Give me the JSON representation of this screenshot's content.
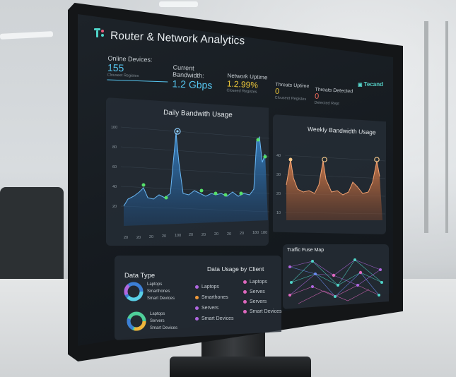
{
  "app": {
    "title": "Router & Network Analytics",
    "brand": "Tecand"
  },
  "stats": [
    {
      "label": "Online Devices:",
      "value": "155",
      "sub": "Clouseet Registes",
      "color": "#56c6f0"
    },
    {
      "label": "Current Bandwidth:",
      "value": "1.2 Gbps",
      "sub": "",
      "color": "#56c6f0"
    },
    {
      "label": "Network Uptime",
      "value": "1.2.99%",
      "sub": "Closeed Registes",
      "color": "#f0c93a"
    },
    {
      "label": "Threats Uptime",
      "value": "0",
      "sub": "Clouseet Registes",
      "color": "#f0c93a"
    },
    {
      "label": "Threats Detected",
      "value": "0",
      "sub": "Detected Rept",
      "color": "#f26b5b"
    }
  ],
  "daily": {
    "title": "Daily Bandwith Usage",
    "yticks": [
      "100",
      "80",
      "60",
      "40",
      "20"
    ],
    "xticks": [
      "20",
      "20",
      "20",
      "20",
      "100",
      "20",
      "20",
      "20",
      "20",
      "20",
      "180",
      "180"
    ],
    "colors": {
      "line": "#4aa3e8",
      "marker": "#56e06a",
      "peak": "#6fc0ff"
    }
  },
  "weekly": {
    "title": "Weekly Bandwidth Usage",
    "yticks": [
      "40",
      "30",
      "20",
      "10"
    ],
    "colors": {
      "line": "#e2895a",
      "marker": "#f7c98a"
    }
  },
  "data_type": {
    "title": "Data Type",
    "legend1": [
      "Laptops",
      "Smarthones",
      "Smart Devices"
    ],
    "legend2": [
      "Laptops",
      "Servers",
      "Smart Devices"
    ]
  },
  "usage_by_client": {
    "title": "Data Usage by Client",
    "col1": [
      {
        "label": "Laptops",
        "color": "#b067e0"
      },
      {
        "label": "Smarthones",
        "color": "#f09a3a"
      },
      {
        "label": "Servers",
        "color": "#b067e0"
      },
      {
        "label": "Smart Devices",
        "color": "#b067e0"
      }
    ],
    "col2": [
      {
        "label": "Laptops",
        "color": "#e069c0"
      },
      {
        "label": "Serves",
        "color": "#e069c0"
      },
      {
        "label": "Servers",
        "color": "#e069c0"
      },
      {
        "label": "Smart Devices",
        "color": "#e069c0"
      }
    ]
  },
  "traffic": {
    "title": "Traffic Fuse Map"
  }
}
